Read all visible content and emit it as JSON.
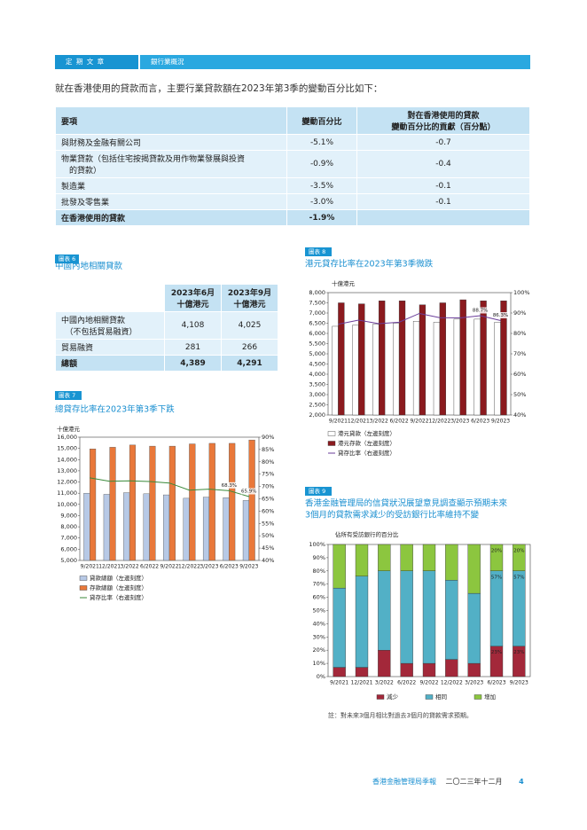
{
  "header": {
    "section": "定 期 文 章",
    "topic": "銀行業概況"
  },
  "intro": "就在香港使用的貸款而言，主要行業貸款額在2023年第3季的變動百分比如下：",
  "table": {
    "columns": [
      "要項",
      "變動百分比",
      "對在香港使用的貸款\n變動百分比的貢獻（百分點）"
    ],
    "rows": [
      [
        "與財務及金融有關公司",
        "-5.1%",
        "-0.7"
      ],
      [
        "物業貸款（包括住宅按揭貸款及用作物業發展與投資\n　的貸款）",
        "-0.9%",
        "-0.4"
      ],
      [
        "製造業",
        "-3.5%",
        "-0.1"
      ],
      [
        "批發及零售業",
        "-3.0%",
        "-0.1"
      ],
      [
        "在香港使用的貸款",
        "-1.9%"
      ]
    ]
  },
  "figure6": {
    "label": "圖表 6",
    "title": "中國內地相關貸款",
    "table": {
      "columns": [
        "2023年6月\n十億港元",
        "2023年9月\n十億港元"
      ],
      "rows": [
        [
          "中國內地相關貸款\n　（不包括貿易融資）",
          "4,108",
          "4,025"
        ],
        [
          "貿易融資",
          "281",
          "266"
        ],
        [
          "總額",
          "4,389",
          "4,291"
        ]
      ]
    }
  },
  "chart_data": [
    {
      "type": "combo",
      "label": "圖表 7",
      "title": "總貸存比率在2023年第3季下跌",
      "y_label": "十億港元",
      "categories": [
        "9/2021",
        "12/2021",
        "3/2022",
        "6/2022",
        "9/2022",
        "12/2022",
        "3/2023",
        "6/2023",
        "9/2023"
      ],
      "series": [
        {
          "name": "貸款總額（左邊刻度）",
          "type": "bar",
          "color": "#b7c9e6",
          "edgecolor": "#555555",
          "values": [
            11000,
            10900,
            11050,
            10950,
            10850,
            10550,
            10650,
            10600,
            10350
          ]
        },
        {
          "name": "存款總額（左邊刻度）",
          "type": "bar",
          "color": "#e9783a",
          "edgecolor": "#555555",
          "values": [
            14950,
            15100,
            15300,
            15200,
            15200,
            15400,
            15450,
            15450,
            15750
          ]
        },
        {
          "name": "貸存比率（右邊刻度）",
          "type": "line",
          "axis": "y2",
          "color": "#3a8a3a",
          "values": [
            73.5,
            72.1,
            72.3,
            72.0,
            71.4,
            68.5,
            68.9,
            68.3,
            65.9
          ],
          "value_labels": [
            null,
            null,
            null,
            null,
            null,
            null,
            null,
            "68.3%",
            "65.9%"
          ]
        }
      ],
      "ylim": [
        5000,
        16000
      ],
      "yticks": [
        {
          "value": 5000,
          "label": "5,000"
        },
        {
          "value": 6000,
          "label": "6,000"
        },
        {
          "value": 7000,
          "label": "7,000"
        },
        {
          "value": 8000,
          "label": "8,000"
        },
        {
          "value": 9000,
          "label": "9,000"
        },
        {
          "value": 10000,
          "label": "10,000"
        },
        {
          "value": 11000,
          "label": "11,000"
        },
        {
          "value": 12000,
          "label": "12,000"
        },
        {
          "value": 13000,
          "label": "13,000"
        },
        {
          "value": 14000,
          "label": "14,000"
        },
        {
          "value": 15000,
          "label": "15,000"
        },
        {
          "value": 16000,
          "label": "16,000"
        }
      ],
      "y2lim": [
        40,
        90
      ],
      "y2ticks": [
        {
          "value": 40,
          "label": "40%"
        },
        {
          "value": 45,
          "label": "45%"
        },
        {
          "value": 50,
          "label": "50%"
        },
        {
          "value": 55,
          "label": "55%"
        },
        {
          "value": 60,
          "label": "60%"
        },
        {
          "value": 65,
          "label": "65%"
        },
        {
          "value": 70,
          "label": "70%"
        },
        {
          "value": 75,
          "label": "75%"
        },
        {
          "value": 80,
          "label": "80%"
        },
        {
          "value": 85,
          "label": "85%"
        },
        {
          "value": 90,
          "label": "90%"
        }
      ]
    },
    {
      "type": "combo",
      "label": "圖表 8",
      "title": "港元貸存比率在2023年第3季微跌",
      "y_label": "十億港元",
      "categories": [
        "9/2021",
        "12/2021",
        "3/2022",
        "6/2022",
        "9/2022",
        "12/2022",
        "3/2023",
        "6/2023",
        "9/2023"
      ],
      "series": [
        {
          "name": "港元貸款（左邊刻度）",
          "type": "bar",
          "color": "#ffffff",
          "edgecolor": "#333333",
          "values": [
            6350,
            6400,
            6450,
            6500,
            6600,
            6550,
            6700,
            6700,
            6550
          ]
        },
        {
          "name": "港元存款（左邊刻度）",
          "type": "bar",
          "color": "#8b1a1e",
          "edgecolor": "#333333",
          "values": [
            7500,
            7450,
            7600,
            7600,
            7400,
            7500,
            7650,
            7600,
            7600
          ]
        },
        {
          "name": "貸存比率（右邊刻度）",
          "type": "line",
          "axis": "y2",
          "color": "#6a3d9a",
          "values": [
            84.5,
            86.5,
            84.8,
            85.5,
            89.8,
            87.7,
            87.6,
            88.7,
            86.3
          ],
          "value_labels": [
            null,
            null,
            null,
            null,
            null,
            null,
            null,
            "88.7%",
            "86.3%"
          ]
        }
      ],
      "ylim": [
        2000,
        8000
      ],
      "yticks": [
        {
          "value": 2000,
          "label": "2,000"
        },
        {
          "value": 2500,
          "label": "2,500"
        },
        {
          "value": 3000,
          "label": "3,000"
        },
        {
          "value": 3500,
          "label": "3,500"
        },
        {
          "value": 4000,
          "label": "4,000"
        },
        {
          "value": 4500,
          "label": "4,500"
        },
        {
          "value": 5000,
          "label": "5,000"
        },
        {
          "value": 5500,
          "label": "5,500"
        },
        {
          "value": 6000,
          "label": "6,000"
        },
        {
          "value": 6500,
          "label": "6,500"
        },
        {
          "value": 7000,
          "label": "7,000"
        },
        {
          "value": 7500,
          "label": "7,500"
        },
        {
          "value": 8000,
          "label": "8,000"
        }
      ],
      "y2lim": [
        40,
        100
      ],
      "y2ticks": [
        {
          "value": 40,
          "label": "40%"
        },
        {
          "value": 50,
          "label": "50%"
        },
        {
          "value": 60,
          "label": "60%"
        },
        {
          "value": 70,
          "label": "70%"
        },
        {
          "value": 80,
          "label": "80%"
        },
        {
          "value": 90,
          "label": "90%"
        },
        {
          "value": 100,
          "label": "100%"
        }
      ]
    },
    {
      "type": "stacked",
      "label": "圖表 9",
      "title": [
        "香港金融管理局的信貸狀況展望意見調查顯示預期未來",
        "3個月的貸款需求減少的受訪銀行比率維持不變"
      ],
      "y_label": "佔所有受訪銀行的百分比",
      "categories": [
        "9/2021",
        "12/2021",
        "3/2022",
        "6/2022",
        "9/2022",
        "12/2022",
        "3/2023",
        "6/2023",
        "9/2023"
      ],
      "series": [
        {
          "name": "減少",
          "color": "#a3283a",
          "values": [
            7,
            7,
            20,
            10,
            10,
            13,
            10,
            23,
            23
          ],
          "value_labels": [
            null,
            null,
            null,
            null,
            null,
            null,
            null,
            "23%",
            "23%"
          ]
        },
        {
          "name": "相同",
          "color": "#52b0c6",
          "values": [
            60,
            69,
            60,
            70,
            70,
            60,
            53,
            57,
            57
          ],
          "value_labels": [
            null,
            null,
            null,
            null,
            null,
            null,
            null,
            "57%",
            "57%"
          ]
        },
        {
          "name": "增加",
          "color": "#8cc63f",
          "values": [
            33,
            24,
            20,
            20,
            20,
            27,
            37,
            20,
            20
          ],
          "value_labels": [
            null,
            null,
            null,
            null,
            null,
            null,
            null,
            "20%",
            "20%"
          ]
        }
      ],
      "ylim": [
        0,
        100
      ],
      "yticks": [
        {
          "value": 0,
          "label": "0%"
        },
        {
          "value": 10,
          "label": "10%"
        },
        {
          "value": 20,
          "label": "20%"
        },
        {
          "value": 30,
          "label": "30%"
        },
        {
          "value": 40,
          "label": "40%"
        },
        {
          "value": 50,
          "label": "50%"
        },
        {
          "value": 60,
          "label": "60%"
        },
        {
          "value": 70,
          "label": "70%"
        },
        {
          "value": 80,
          "label": "80%"
        },
        {
          "value": 90,
          "label": "90%"
        },
        {
          "value": 100,
          "label": "100%"
        }
      ],
      "note": "註：對未來3個月相比對過去3個月的貸款需求預期。"
    }
  ],
  "footer": {
    "publication": "香港金融管理局季報",
    "date": "二〇二三年十二月",
    "page": "4"
  }
}
